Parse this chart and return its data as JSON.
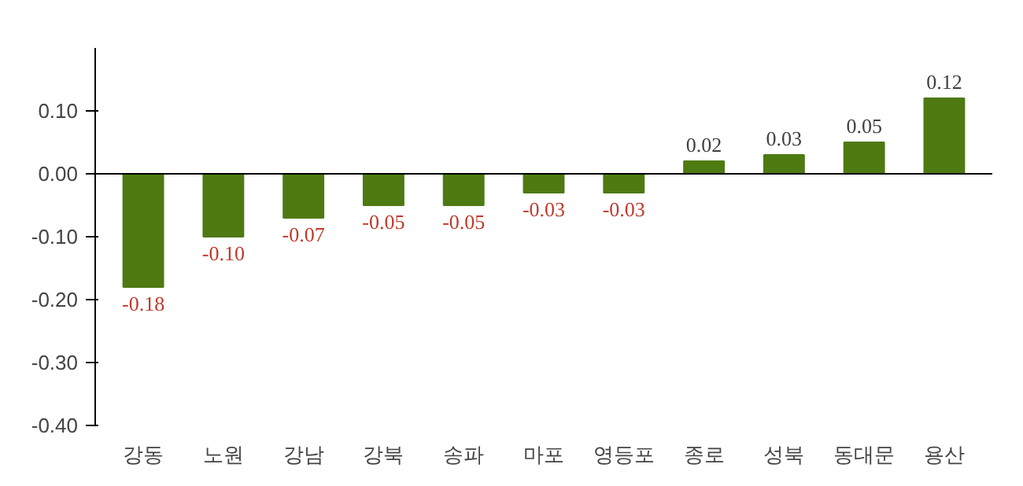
{
  "chart_data": {
    "type": "bar",
    "categories": [
      "강동",
      "노원",
      "강남",
      "강북",
      "송파",
      "마포",
      "영등포",
      "종로",
      "성북",
      "동대문",
      "용산"
    ],
    "values": [
      -0.18,
      -0.1,
      -0.07,
      -0.05,
      -0.05,
      -0.03,
      -0.03,
      0.02,
      0.03,
      0.05,
      0.12
    ],
    "value_labels": [
      "-0.18",
      "-0.10",
      "-0.07",
      "-0.05",
      "-0.05",
      "-0.03",
      "-0.03",
      "0.02",
      "0.03",
      "0.05",
      "0.12"
    ],
    "color": "#4e7a12",
    "ylim": [
      -0.4,
      0.2
    ],
    "yticks": [
      {
        "value": -0.4,
        "label": "-0.40"
      },
      {
        "value": -0.3,
        "label": "-0.30"
      },
      {
        "value": -0.2,
        "label": "-0.20"
      },
      {
        "value": -0.1,
        "label": "-0.10"
      },
      {
        "value": 0,
        "label": "0.00"
      },
      {
        "value": 0.1,
        "label": "0.10"
      }
    ],
    "ref_lines": [
      {
        "axis": "y",
        "value": 0,
        "color": "#000000"
      }
    ],
    "grid": false
  }
}
